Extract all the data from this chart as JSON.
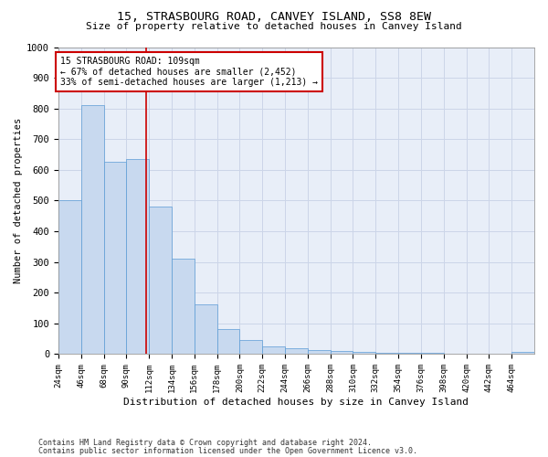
{
  "title1": "15, STRASBOURG ROAD, CANVEY ISLAND, SS8 8EW",
  "title2": "Size of property relative to detached houses in Canvey Island",
  "xlabel": "Distribution of detached houses by size in Canvey Island",
  "ylabel": "Number of detached properties",
  "footnote1": "Contains HM Land Registry data © Crown copyright and database right 2024.",
  "footnote2": "Contains public sector information licensed under the Open Government Licence v3.0.",
  "annotation_line1": "15 STRASBOURG ROAD: 109sqm",
  "annotation_line2": "← 67% of detached houses are smaller (2,452)",
  "annotation_line3": "33% of semi-detached houses are larger (1,213) →",
  "property_size": 109,
  "bar_edges": [
    24,
    46,
    68,
    90,
    112,
    134,
    156,
    178,
    200,
    222,
    244,
    266,
    288,
    310,
    332,
    354,
    376,
    398,
    420,
    442,
    464
  ],
  "bar_heights": [
    500,
    810,
    625,
    635,
    480,
    312,
    163,
    82,
    46,
    25,
    18,
    12,
    9,
    7,
    5,
    3,
    3,
    2,
    1,
    0,
    8
  ],
  "bar_color": "#c8d9ef",
  "bar_edge_color": "#5b9bd5",
  "vline_color": "#cc0000",
  "annotation_box_color": "#cc0000",
  "grid_color": "#ccd5e8",
  "background_color": "#e8eef8",
  "ylim": [
    0,
    1000
  ],
  "yticks": [
    0,
    100,
    200,
    300,
    400,
    500,
    600,
    700,
    800,
    900,
    1000
  ]
}
